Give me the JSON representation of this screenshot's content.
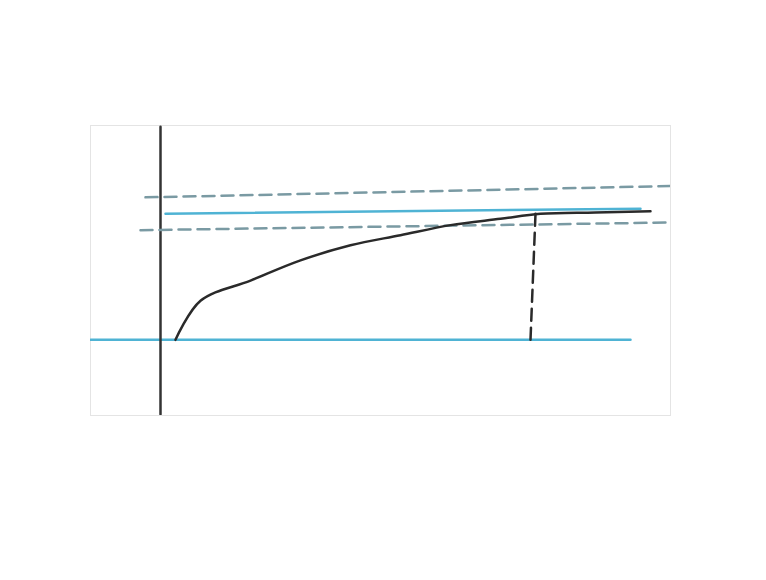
{
  "chart_data": {
    "type": "line",
    "tick_labels": false,
    "xlim": [
      -16,
      100
    ],
    "ylim": [
      -0.6,
      1.7
    ],
    "xticks": [],
    "yticks": [],
    "series": [
      {
        "color": "#4fb3d4",
        "line_style": "solid",
        "x": [
          -16,
          92
        ],
        "values": [
          0,
          0
        ]
      },
      {
        "color": "#333333",
        "line_style": "solid",
        "x": [
          -2,
          -2
        ],
        "values": [
          -0.59,
          1.69
        ]
      },
      {
        "color": "#4fb3d4",
        "line_style": "solid",
        "x": [
          -1,
          94
        ],
        "values": [
          1.0,
          1.04
        ]
      },
      {
        "color": "#7a9aa3",
        "line_style": "dashed",
        "x": [
          -5,
          100
        ],
        "values": [
          1.13,
          1.22
        ]
      },
      {
        "color": "#7a9aa3",
        "line_style": "dashed",
        "x": [
          -6,
          99
        ],
        "values": [
          0.87,
          0.93
        ]
      },
      {
        "color": "#2a2a2a",
        "line_style": "solid",
        "x": [
          1,
          6,
          16,
          26,
          36,
          46,
          56,
          66,
          74,
          85,
          96
        ],
        "values": [
          0,
          0.31,
          0.47,
          0.63,
          0.75,
          0.83,
          0.91,
          0.96,
          1.0,
          1.01,
          1.02
        ]
      },
      {
        "color": "#2a2a2a",
        "line_style": "dashed",
        "x": [
          73,
          72
        ],
        "values": [
          1.0,
          0
        ]
      }
    ]
  }
}
